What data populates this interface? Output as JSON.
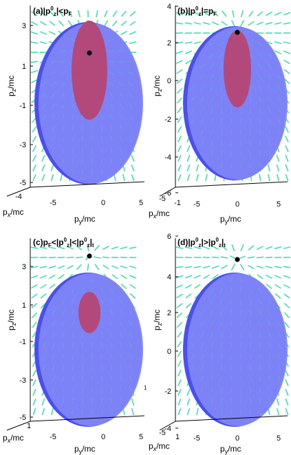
{
  "colors": {
    "ellipsoid": "#7f86f6",
    "ellipsoid_edge": "#4a4ff0",
    "inner": "#b3497a",
    "field_lines": "#3fe0b0",
    "axes": "#000000",
    "point": "#000000"
  },
  "panels": [
    {
      "title": "(a)|p₀z|<pF",
      "title_parts": [
        "(a)|p",
        "0",
        "z",
        "|<p",
        "F"
      ],
      "zlabel": "p_z/mc",
      "xlabel": "p_x/mc",
      "ylabel": "p_y/mc",
      "z_ticks": [
        "3",
        "1",
        "-1",
        "-3",
        "-5"
      ],
      "y_ticks": [
        "-5",
        "0",
        "5"
      ],
      "x_ticks": [
        "-4"
      ],
      "has_inner_region": true,
      "point_position": "inside"
    },
    {
      "title": "(b)|p⁰z|=pF",
      "title_parts": [
        "(b)|p",
        "0",
        "z",
        "|=p",
        "F"
      ],
      "zlabel": "p_z/mc",
      "xlabel": "p_x/mc",
      "ylabel": "p_y/mc",
      "z_ticks": [
        "4",
        "2",
        "0",
        "-2",
        "-4",
        "-6"
      ],
      "y_ticks": [
        "-5",
        "0",
        "5"
      ],
      "x_ticks": [
        "-5",
        "-1"
      ],
      "has_inner_region": true,
      "point_position": "top-edge"
    },
    {
      "title": "(c)pF<|p⁰z|<|p⁰z|t",
      "title_parts": [
        "(c)p",
        "F",
        "<|p",
        "0",
        "z",
        "|<|p",
        "0",
        "z",
        "|",
        "t"
      ],
      "zlabel": "p_z/mc",
      "xlabel": "p_x/mc",
      "ylabel": "p_y/mc",
      "z_ticks": [
        "3",
        "1",
        "-1",
        "-3",
        "-5"
      ],
      "y_ticks": [
        "-5",
        "0",
        "5"
      ],
      "x_ticks": [
        "1"
      ],
      "has_inner_region": true,
      "point_position": "above"
    },
    {
      "title": "(d)|p⁰z|>|p⁰z|t",
      "title_parts": [
        "(d)|p",
        "0",
        "z",
        "|>|p",
        "0",
        "z",
        "|",
        "t"
      ],
      "zlabel": "p_z/mc",
      "xlabel": "p_x/mc",
      "ylabel": "p_y/mc",
      "z_ticks": [
        "6",
        "4",
        "2",
        "0",
        "-2",
        "-4"
      ],
      "y_ticks": [
        "-5",
        "0",
        "5"
      ],
      "x_ticks": [
        "-5",
        "1"
      ],
      "has_inner_region": false,
      "point_position": "above"
    }
  ],
  "stray_label": "1"
}
